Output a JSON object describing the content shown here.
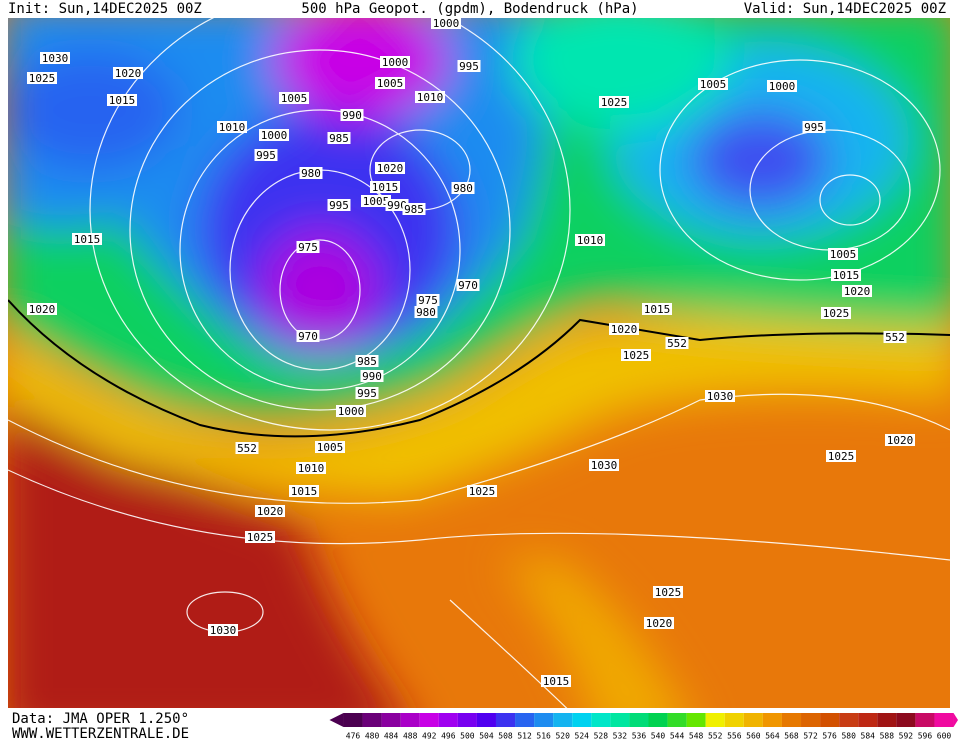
{
  "header": {
    "init": "Init: Sun,14DEC2025 00Z",
    "title": "500 hPa Geopot. (gpdm), Bodendruck (hPa)",
    "valid": "Valid: Sun,14DEC2025 00Z"
  },
  "footer": {
    "source": "Data: JMA OPER 1.250°",
    "website": "WWW.WETTERZENTRALE.DE"
  },
  "contour_labels": [
    1030,
    1025,
    1020,
    1015,
    1010,
    1005,
    1000,
    995,
    985,
    990,
    980,
    975,
    995,
    1020,
    1015,
    1005,
    990,
    985,
    980,
    1000,
    1000,
    995,
    1005,
    1010,
    970,
    975,
    980,
    970,
    985,
    990,
    995,
    1000,
    1005,
    1010,
    1015,
    1020,
    1025,
    1030,
    1015,
    1020,
    1025,
    1005,
    1000,
    995,
    1005,
    1015,
    1020,
    1025,
    1010,
    1015,
    1020,
    1025,
    1030,
    1030,
    1025,
    1025,
    1020,
    1025,
    1020,
    1015,
    552,
    552,
    552
  ],
  "colorbar": {
    "ticks": [
      476,
      480,
      484,
      488,
      492,
      496,
      500,
      504,
      508,
      512,
      516,
      520,
      524,
      528,
      532,
      536,
      540,
      544,
      548,
      552,
      556,
      560,
      564,
      568,
      572,
      576,
      580,
      584,
      588,
      592,
      596,
      600
    ],
    "colors": [
      "#4b0050",
      "#6a0078",
      "#8a00a0",
      "#aa00c8",
      "#c800e6",
      "#a000f0",
      "#7800f0",
      "#5000f0",
      "#3c32f0",
      "#2864f0",
      "#1e8cf0",
      "#14b4f0",
      "#00d2f0",
      "#00e6c8",
      "#00e6a0",
      "#00dc78",
      "#00d250",
      "#32dc28",
      "#64e600",
      "#f0f000",
      "#f0d200",
      "#f0b400",
      "#f09600",
      "#e67800",
      "#dc6400",
      "#d25000",
      "#c83c14",
      "#be2814",
      "#a01414",
      "#8c0a1e",
      "#c80a64",
      "#f00aa0"
    ]
  }
}
